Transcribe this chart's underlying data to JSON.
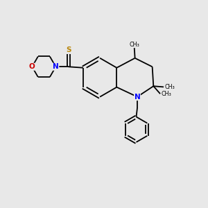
{
  "bg_color": "#e8e8e8",
  "bond_color": "#000000",
  "N_color": "#0000ff",
  "O_color": "#cc0000",
  "S_color": "#b8860b",
  "lw": 1.3,
  "fs": 7.5,
  "xlim": [
    0,
    10
  ],
  "ylim": [
    0,
    10
  ]
}
